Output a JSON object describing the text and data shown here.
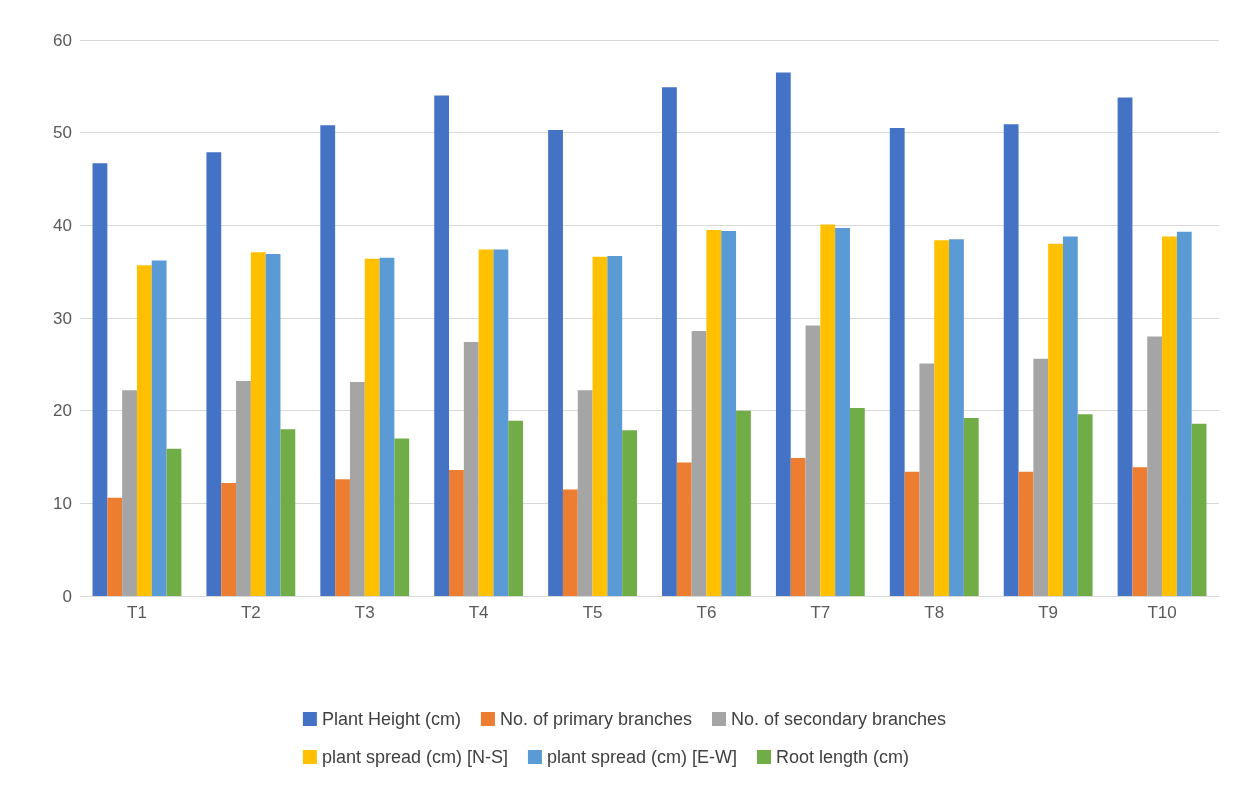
{
  "chart_data": {
    "type": "bar",
    "categories": [
      "T1",
      "T2",
      "T3",
      "T4",
      "T5",
      "T6",
      "T7",
      "T8",
      "T9",
      "T10"
    ],
    "series": [
      {
        "name": "Plant Height (cm)",
        "color": "#4472c4",
        "values": [
          46.7,
          47.9,
          50.8,
          54.0,
          50.3,
          54.9,
          56.5,
          50.5,
          50.9,
          53.8
        ]
      },
      {
        "name": "No. of primary branches",
        "color": "#ed7d31",
        "values": [
          10.6,
          12.2,
          12.6,
          13.6,
          11.5,
          14.4,
          14.9,
          13.4,
          13.4,
          13.9
        ]
      },
      {
        "name": "No. of secondary branches",
        "color": "#a5a5a5",
        "values": [
          22.2,
          23.2,
          23.1,
          27.4,
          22.2,
          28.6,
          29.2,
          25.1,
          25.6,
          28.0
        ]
      },
      {
        "name": "plant spread (cm) [N-S]",
        "color": "#ffc000",
        "values": [
          35.7,
          37.1,
          36.4,
          37.4,
          36.6,
          39.5,
          40.1,
          38.4,
          38.0,
          38.8
        ]
      },
      {
        "name": "plant spread (cm) [E-W]",
        "color": "#5b9bd5",
        "values": [
          36.2,
          36.9,
          36.5,
          37.4,
          36.7,
          39.4,
          39.7,
          38.5,
          38.8,
          39.3
        ]
      },
      {
        "name": "Root length (cm)",
        "color": "#70ad47",
        "values": [
          15.9,
          18.0,
          17.0,
          18.9,
          17.9,
          20.0,
          20.3,
          19.2,
          19.6,
          18.6
        ]
      }
    ],
    "ylim": [
      0,
      60
    ],
    "yticks": [
      0,
      10,
      20,
      30,
      40,
      50,
      60
    ],
    "grid": "y",
    "legend": "bottom"
  }
}
